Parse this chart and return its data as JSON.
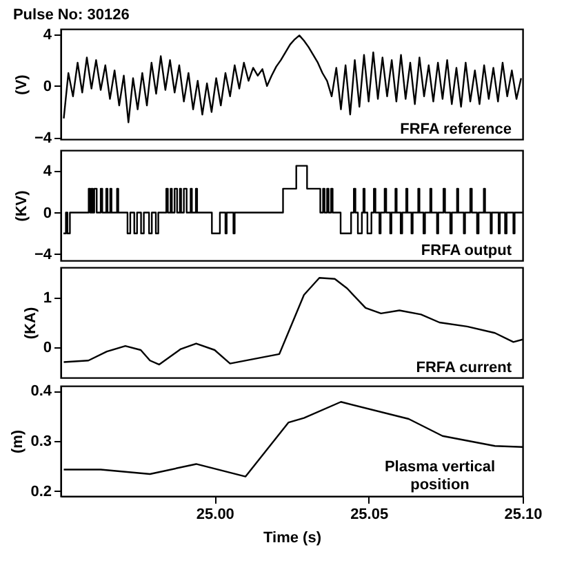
{
  "chart_data": [
    {
      "type": "line",
      "title": "Pulse No: 30126",
      "ylabel": "(V)",
      "xlim": [
        24.95,
        25.1
      ],
      "ylim": [
        -4.1,
        4.4
      ],
      "yticks": [
        -4,
        0,
        4
      ],
      "tick_labels": "y",
      "grid": false,
      "series": [
        {
          "name": "FRFA reference",
          "color": "#000000",
          "x": [
            24.951,
            24.9525,
            24.954,
            24.9555,
            24.957,
            24.9585,
            24.96,
            24.9615,
            24.963,
            24.9645,
            24.966,
            24.9675,
            24.969,
            24.9705,
            24.972,
            24.9735,
            24.975,
            24.9765,
            24.978,
            24.9795,
            24.981,
            24.9825,
            24.984,
            24.9855,
            24.987,
            24.9885,
            24.99,
            24.9915,
            24.993,
            24.9945,
            24.996,
            24.9975,
            24.999,
            25.0005,
            25.002,
            25.0035,
            25.005,
            25.0065,
            25.008,
            25.0095,
            25.011,
            25.0125,
            25.014,
            25.0155,
            25.017,
            25.0185,
            25.02,
            25.0215,
            25.023,
            25.0245,
            25.026,
            25.0275,
            25.029,
            25.0305,
            25.032,
            25.0335,
            25.035,
            25.0365,
            25.038,
            25.0395,
            25.041,
            25.0425,
            25.044,
            25.0455,
            25.047,
            25.0485,
            25.05,
            25.0515,
            25.053,
            25.0545,
            25.056,
            25.0575,
            25.059,
            25.0605,
            25.062,
            25.0635,
            25.065,
            25.0665,
            25.068,
            25.0695,
            25.071,
            25.0725,
            25.074,
            25.0755,
            25.077,
            25.0785,
            25.08,
            25.0815,
            25.083,
            25.0845,
            25.086,
            25.0875,
            25.089,
            25.0905,
            25.092,
            25.0935,
            25.095,
            25.0965,
            25.098,
            25.0995
          ],
          "values": [
            -2.5,
            1.0,
            -0.8,
            1.8,
            -0.5,
            2.2,
            -0.2,
            2.0,
            -0.3,
            1.6,
            -1.0,
            1.2,
            -1.5,
            0.8,
            -2.8,
            0.6,
            -1.8,
            1.0,
            -1.5,
            1.8,
            -0.6,
            2.3,
            -0.3,
            2.0,
            -0.5,
            1.6,
            -1.2,
            1.0,
            -1.8,
            0.4,
            -2.2,
            0.2,
            -2.0,
            0.6,
            -1.5,
            1.0,
            -0.8,
            1.6,
            -0.2,
            1.8,
            0.4,
            1.4,
            0.8,
            1.3,
            0.0,
            0.8,
            1.5,
            2.0,
            2.6,
            3.2,
            3.6,
            3.9,
            3.5,
            3.0,
            2.4,
            1.8,
            1.0,
            0.4,
            -0.8,
            1.4,
            -1.8,
            1.6,
            -2.2,
            2.0,
            -1.6,
            2.4,
            -1.2,
            2.6,
            -1.0,
            2.2,
            -0.8,
            2.0,
            -1.2,
            2.4,
            -1.0,
            1.8,
            -1.4,
            2.2,
            -0.8,
            1.6,
            -1.2,
            1.8,
            -1.0,
            2.0,
            -1.4,
            1.4,
            -1.6,
            1.8,
            -1.2,
            1.2,
            -1.4,
            1.6,
            -1.0,
            1.4,
            -1.2,
            1.8,
            -0.8,
            1.2,
            -1.0,
            0.6
          ]
        }
      ]
    },
    {
      "type": "step",
      "ylabel": "(KV)",
      "xlim": [
        24.95,
        25.1
      ],
      "ylim": [
        -4.6,
        6.0
      ],
      "yticks": [
        -4,
        0,
        4
      ],
      "tick_labels": "y",
      "grid": false,
      "series": [
        {
          "name": "FRFA output",
          "color": "#000000",
          "x": [
            24.9509,
            24.9517,
            24.9522,
            24.953,
            24.9591,
            24.9596,
            24.96,
            24.9604,
            24.9609,
            24.9617,
            24.963,
            24.9635,
            24.9648,
            24.9652,
            24.9661,
            24.9665,
            24.9683,
            24.9687,
            24.9717,
            24.9726,
            24.9739,
            24.9748,
            24.9761,
            24.977,
            24.9787,
            24.9796,
            24.9809,
            24.9817,
            24.9843,
            24.9848,
            24.9857,
            24.9861,
            24.987,
            24.9878,
            24.9887,
            24.9891,
            24.99,
            24.9909,
            24.9922,
            24.9926,
            24.9939,
            24.9943,
            24.9991,
            25.0017,
            25.0035,
            25.0039,
            25.0061,
            25.0065,
            25.0222,
            25.0265,
            25.03,
            25.0343,
            25.0352,
            25.0357,
            25.0365,
            25.037,
            25.0378,
            25.0383,
            25.0409,
            25.0443,
            25.0452,
            25.0457,
            25.0465,
            25.0478,
            25.0483,
            25.0487,
            25.0496,
            25.0509,
            25.0517,
            25.0522,
            25.0535,
            25.0539,
            25.0552,
            25.0557,
            25.057,
            25.0574,
            25.0587,
            25.0591,
            25.0604,
            25.0609,
            25.0622,
            25.0626,
            25.0639,
            25.0643,
            25.0661,
            25.0665,
            25.0678,
            25.0683,
            25.07,
            25.0704,
            25.0722,
            25.0726,
            25.0743,
            25.0748,
            25.0765,
            25.077,
            25.0787,
            25.0791,
            25.0809,
            25.0813,
            25.083,
            25.0835,
            25.0852,
            25.0857,
            25.0874,
            25.0878,
            25.0896,
            25.09,
            25.0922,
            25.0926,
            25.0943,
            25.0948,
            25.097,
            25.0974,
            25.1
          ],
          "values": [
            -2,
            0,
            -2,
            0,
            2.3,
            0,
            2.3,
            0,
            2.3,
            0,
            2.3,
            0,
            2.3,
            0,
            2.3,
            0,
            2.3,
            0,
            -2,
            0,
            -2,
            0,
            -2,
            0,
            -2,
            0,
            -2,
            0,
            2.3,
            0,
            2.3,
            0,
            2.3,
            0,
            2.3,
            0,
            2.3,
            0,
            2.3,
            0,
            2.3,
            0,
            -2,
            0,
            -2,
            0,
            -2,
            0,
            2.3,
            4.5,
            2.3,
            0,
            2.3,
            0,
            2.3,
            0,
            2.3,
            0,
            -2,
            0,
            2.3,
            0,
            -2,
            0,
            2.3,
            0,
            -2,
            0,
            2.3,
            0,
            -2,
            0,
            2.3,
            0,
            -2,
            0,
            2.3,
            0,
            -2,
            0,
            2.3,
            0,
            -2,
            0,
            2.3,
            0,
            -2,
            0,
            2.3,
            0,
            -2,
            0,
            2.3,
            0,
            -2,
            0,
            2.3,
            0,
            -2,
            0,
            2.3,
            0,
            -2,
            0,
            2.3,
            0,
            -2,
            0,
            -2,
            0,
            -2,
            0,
            -2,
            0,
            0
          ]
        }
      ]
    },
    {
      "type": "line",
      "ylabel": "(KA)",
      "xlim": [
        24.95,
        25.1
      ],
      "ylim": [
        -0.6,
        1.6
      ],
      "yticks": [
        0,
        1
      ],
      "tick_labels": "y",
      "grid": false,
      "series": [
        {
          "name": "FRFA current",
          "color": "#000000",
          "x": [
            24.951,
            24.959,
            24.965,
            24.971,
            24.976,
            24.979,
            24.982,
            24.989,
            24.994,
            25.0,
            25.005,
            25.021,
            25.029,
            25.034,
            25.039,
            25.043,
            25.049,
            25.054,
            25.06,
            25.067,
            25.073,
            25.082,
            25.091,
            25.097,
            25.1
          ],
          "values": [
            -0.29,
            -0.26,
            -0.08,
            0.03,
            -0.05,
            -0.26,
            -0.34,
            -0.03,
            0.08,
            -0.05,
            -0.32,
            -0.13,
            1.05,
            1.39,
            1.37,
            1.18,
            0.79,
            0.68,
            0.74,
            0.66,
            0.5,
            0.42,
            0.29,
            0.11,
            0.16
          ]
        }
      ]
    },
    {
      "type": "line",
      "ylabel": "(m)",
      "xlabel": "Time (s)",
      "xlim": [
        24.95,
        25.1
      ],
      "xticks": [
        {
          "value": 25,
          "label": "25.00"
        },
        {
          "value": 25.05,
          "label": "25.05"
        },
        {
          "value": 25.1,
          "label": "25.10"
        }
      ],
      "ylim": [
        0.19,
        0.41
      ],
      "yticks": [
        0.2,
        0.3,
        0.4
      ],
      "grid": false,
      "series": [
        {
          "name": "Plasma vertical position",
          "color": "#000000",
          "x": [
            24.951,
            24.963,
            24.979,
            24.994,
            25.01,
            25.024,
            25.029,
            25.041,
            25.063,
            25.074,
            25.091,
            25.1
          ],
          "values": [
            0.243,
            0.243,
            0.234,
            0.254,
            0.229,
            0.337,
            0.346,
            0.378,
            0.344,
            0.31,
            0.29,
            0.288
          ]
        }
      ]
    }
  ]
}
